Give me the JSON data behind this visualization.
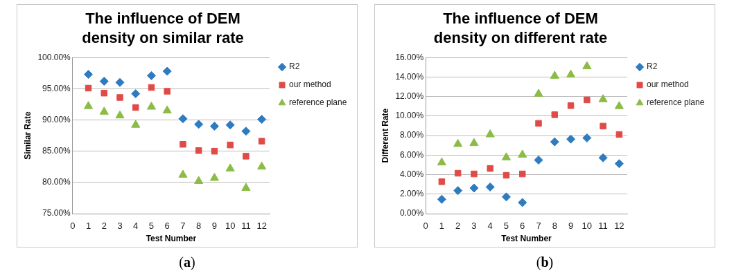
{
  "chart_data": [
    {
      "type": "scatter",
      "title": "The influence of DEM density on similar rate",
      "xlabel": "Test Number",
      "ylabel": "Similar Rate",
      "x": [
        1,
        2,
        3,
        4,
        5,
        6,
        7,
        8,
        9,
        10,
        11,
        12
      ],
      "series": [
        {
          "name": "R2",
          "color": "#2e7bc0",
          "marker": "diamond",
          "values": [
            97.3,
            96.2,
            96.0,
            94.2,
            97.1,
            97.8,
            90.2,
            89.3,
            89.0,
            89.2,
            88.2,
            90.1
          ]
        },
        {
          "name": "our method",
          "color": "#e04b47",
          "marker": "square",
          "values": [
            95.1,
            94.3,
            93.6,
            92.0,
            95.2,
            94.6,
            86.1,
            85.1,
            85.0,
            86.0,
            84.2,
            86.6
          ]
        },
        {
          "name": "reference plane",
          "color": "#8cbc47",
          "marker": "triangle",
          "values": [
            92.2,
            91.3,
            90.7,
            89.2,
            92.1,
            91.5,
            81.2,
            80.2,
            80.7,
            82.2,
            79.1,
            82.5
          ]
        }
      ],
      "xlim": [
        0,
        12.5
      ],
      "xticks": [
        0,
        1,
        2,
        3,
        4,
        5,
        6,
        7,
        8,
        9,
        10,
        11,
        12
      ],
      "ylim": [
        75,
        100
      ],
      "yticks": [
        {
          "value": 75,
          "label": "75.00%"
        },
        {
          "value": 80,
          "label": "80.00%"
        },
        {
          "value": 85,
          "label": "85.00%"
        },
        {
          "value": 90,
          "label": "90.00%"
        },
        {
          "value": 95,
          "label": "95.00%"
        },
        {
          "value": 100,
          "label": "100.00%"
        }
      ],
      "grid": "y",
      "legend": "right",
      "annotations": [
        "(a)"
      ]
    },
    {
      "type": "scatter",
      "title": "The influence of DEM density on different rate",
      "xlabel": "Test Number",
      "ylabel": "Different Rate",
      "x": [
        1,
        2,
        3,
        4,
        5,
        6,
        7,
        8,
        9,
        10,
        11,
        12
      ],
      "series": [
        {
          "name": "R2",
          "color": "#2e7bc0",
          "marker": "diamond",
          "values": [
            1.47,
            2.36,
            2.62,
            2.73,
            1.71,
            1.14,
            5.49,
            7.36,
            7.64,
            7.76,
            5.72,
            5.12
          ]
        },
        {
          "name": "our method",
          "color": "#e04b47",
          "marker": "square",
          "values": [
            3.27,
            4.14,
            4.07,
            4.63,
            3.93,
            4.07,
            9.25,
            10.14,
            11.07,
            11.66,
            8.97,
            8.11
          ]
        },
        {
          "name": "reference plane",
          "color": "#8cbc47",
          "marker": "triangle",
          "values": [
            5.23,
            7.13,
            7.22,
            8.11,
            5.75,
            6.03,
            12.27,
            14.11,
            14.23,
            15.09,
            11.71,
            11.0
          ]
        }
      ],
      "xlim": [
        0,
        12.5
      ],
      "xticks": [
        0,
        1,
        2,
        3,
        4,
        5,
        6,
        7,
        8,
        9,
        10,
        11,
        12
      ],
      "ylim": [
        0,
        16
      ],
      "yticks": [
        {
          "value": 0,
          "label": "0.00%"
        },
        {
          "value": 2,
          "label": "2.00%"
        },
        {
          "value": 4,
          "label": "4.00%"
        },
        {
          "value": 6,
          "label": "6.00%"
        },
        {
          "value": 8,
          "label": "8.00%"
        },
        {
          "value": 10,
          "label": "10.00%"
        },
        {
          "value": 12,
          "label": "12.00%"
        },
        {
          "value": 14,
          "label": "14.00%"
        },
        {
          "value": 16,
          "label": "16.00%"
        }
      ],
      "grid": "y",
      "legend": "right",
      "annotations": [
        "(b)"
      ]
    }
  ]
}
